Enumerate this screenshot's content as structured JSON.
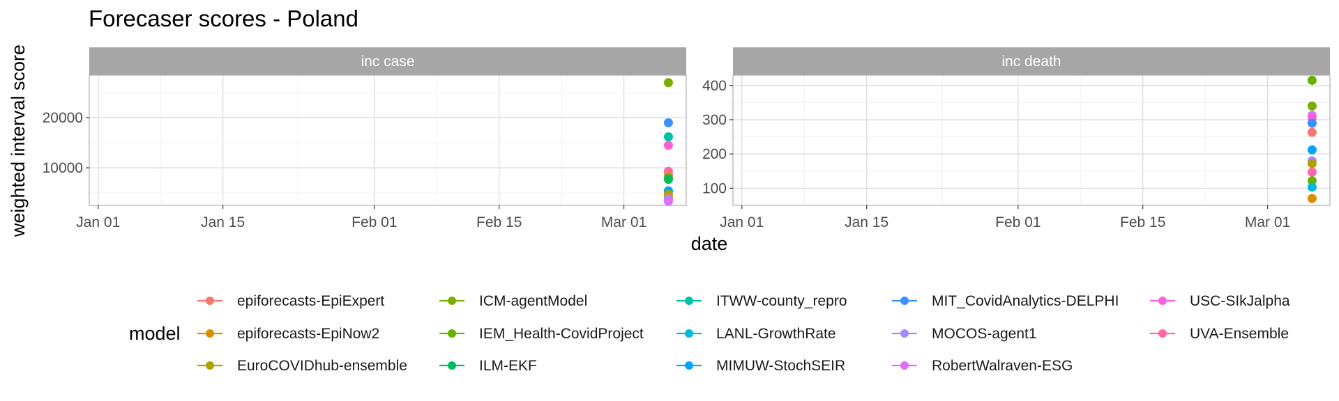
{
  "chart_data": {
    "type": "scatter",
    "title": "Forecaser scores - Poland",
    "xlabel": "date",
    "ylabel": "weighted interval score",
    "x_tick_labels": [
      "Jan 01",
      "Jan 15",
      "Feb 01",
      "Feb 15",
      "Mar 01"
    ],
    "x_tick_dates": [
      "2021-01-01",
      "2021-01-15",
      "2021-02-01",
      "2021-02-15",
      "2021-03-01"
    ],
    "xlim": [
      "2020-12-31",
      "2021-03-08"
    ],
    "grid": true,
    "legend": {
      "title": "model",
      "position": "bottom",
      "columns": 5
    },
    "series": [
      {
        "name": "epiforecasts-EpiExpert",
        "color": "#F8766D"
      },
      {
        "name": "epiforecasts-EpiNow2",
        "color": "#DB8E00"
      },
      {
        "name": "EuroCOVIDhub-ensemble",
        "color": "#AEA200"
      },
      {
        "name": "ICM-agentModel",
        "color": "#7CAE00"
      },
      {
        "name": "IEM_Health-CovidProject",
        "color": "#64B200"
      },
      {
        "name": "ILM-EKF",
        "color": "#00BD5C"
      },
      {
        "name": "ITWW-county_repro",
        "color": "#00C1A7"
      },
      {
        "name": "LANL-GrowthRate",
        "color": "#00BADE"
      },
      {
        "name": "MIMUW-StochSEIR",
        "color": "#00A6FF"
      },
      {
        "name": "MIT_CovidAnalytics-DELPHI",
        "color": "#3B8FFF"
      },
      {
        "name": "MOCOS-agent1",
        "color": "#A58AFF"
      },
      {
        "name": "RobertWalraven-ESG",
        "color": "#DF70F8"
      },
      {
        "name": "USC-SIkJalpha",
        "color": "#FB61D7"
      },
      {
        "name": "UVA-Ensemble",
        "color": "#FF66A8"
      }
    ],
    "panels": [
      {
        "label": "inc case",
        "ylim": [
          2500,
          28500
        ],
        "y_ticks": [
          10000,
          20000
        ],
        "points": [
          {
            "model": "ICM-agentModel",
            "date": "2021-03-06",
            "y": 27000
          },
          {
            "model": "MIT_CovidAnalytics-DELPHI",
            "date": "2021-03-06",
            "y": 19000
          },
          {
            "model": "ITWW-county_repro",
            "date": "2021-03-06",
            "y": 16200
          },
          {
            "model": "USC-SIkJalpha",
            "date": "2021-03-06",
            "y": 14500
          },
          {
            "model": "UVA-Ensemble",
            "date": "2021-03-06",
            "y": 9300
          },
          {
            "model": "epiforecasts-EpiExpert",
            "date": "2021-03-06",
            "y": 8600
          },
          {
            "model": "IEM_Health-CovidProject",
            "date": "2021-03-06",
            "y": 8000
          },
          {
            "model": "ILM-EKF",
            "date": "2021-03-06",
            "y": 7700
          },
          {
            "model": "LANL-GrowthRate",
            "date": "2021-03-06",
            "y": 5400
          },
          {
            "model": "MIMUW-StochSEIR",
            "date": "2021-03-06",
            "y": 5300
          },
          {
            "model": "EuroCOVIDhub-ensemble",
            "date": "2021-03-06",
            "y": 4700
          },
          {
            "model": "epiforecasts-EpiNow2",
            "date": "2021-03-06",
            "y": 4200
          },
          {
            "model": "MOCOS-agent1",
            "date": "2021-03-06",
            "y": 3800
          },
          {
            "model": "RobertWalraven-ESG",
            "date": "2021-03-06",
            "y": 3300
          }
        ]
      },
      {
        "label": "inc death",
        "ylim": [
          50,
          430
        ],
        "y_ticks": [
          100,
          200,
          300,
          400
        ],
        "points": [
          {
            "model": "IEM_Health-CovidProject",
            "date": "2021-03-06",
            "y": 415
          },
          {
            "model": "ICM-agentModel",
            "date": "2021-03-06",
            "y": 340
          },
          {
            "model": "RobertWalraven-ESG",
            "date": "2021-03-06",
            "y": 313
          },
          {
            "model": "USC-SIkJalpha",
            "date": "2021-03-06",
            "y": 305
          },
          {
            "model": "MIT_CovidAnalytics-DELPHI",
            "date": "2021-03-06",
            "y": 290
          },
          {
            "model": "epiforecasts-EpiExpert",
            "date": "2021-03-06",
            "y": 263
          },
          {
            "model": "MIMUW-StochSEIR",
            "date": "2021-03-06",
            "y": 212
          },
          {
            "model": "MOCOS-agent1",
            "date": "2021-03-06",
            "y": 180
          },
          {
            "model": "EuroCOVIDhub-ensemble",
            "date": "2021-03-06",
            "y": 172
          },
          {
            "model": "UVA-Ensemble",
            "date": "2021-03-06",
            "y": 147
          },
          {
            "model": "IEM_Health-CovidProject",
            "date": "2021-03-06",
            "y": 122
          },
          {
            "model": "LANL-GrowthRate",
            "date": "2021-03-06",
            "y": 103
          },
          {
            "model": "epiforecasts-EpiNow2",
            "date": "2021-03-06",
            "y": 70
          }
        ]
      }
    ]
  }
}
